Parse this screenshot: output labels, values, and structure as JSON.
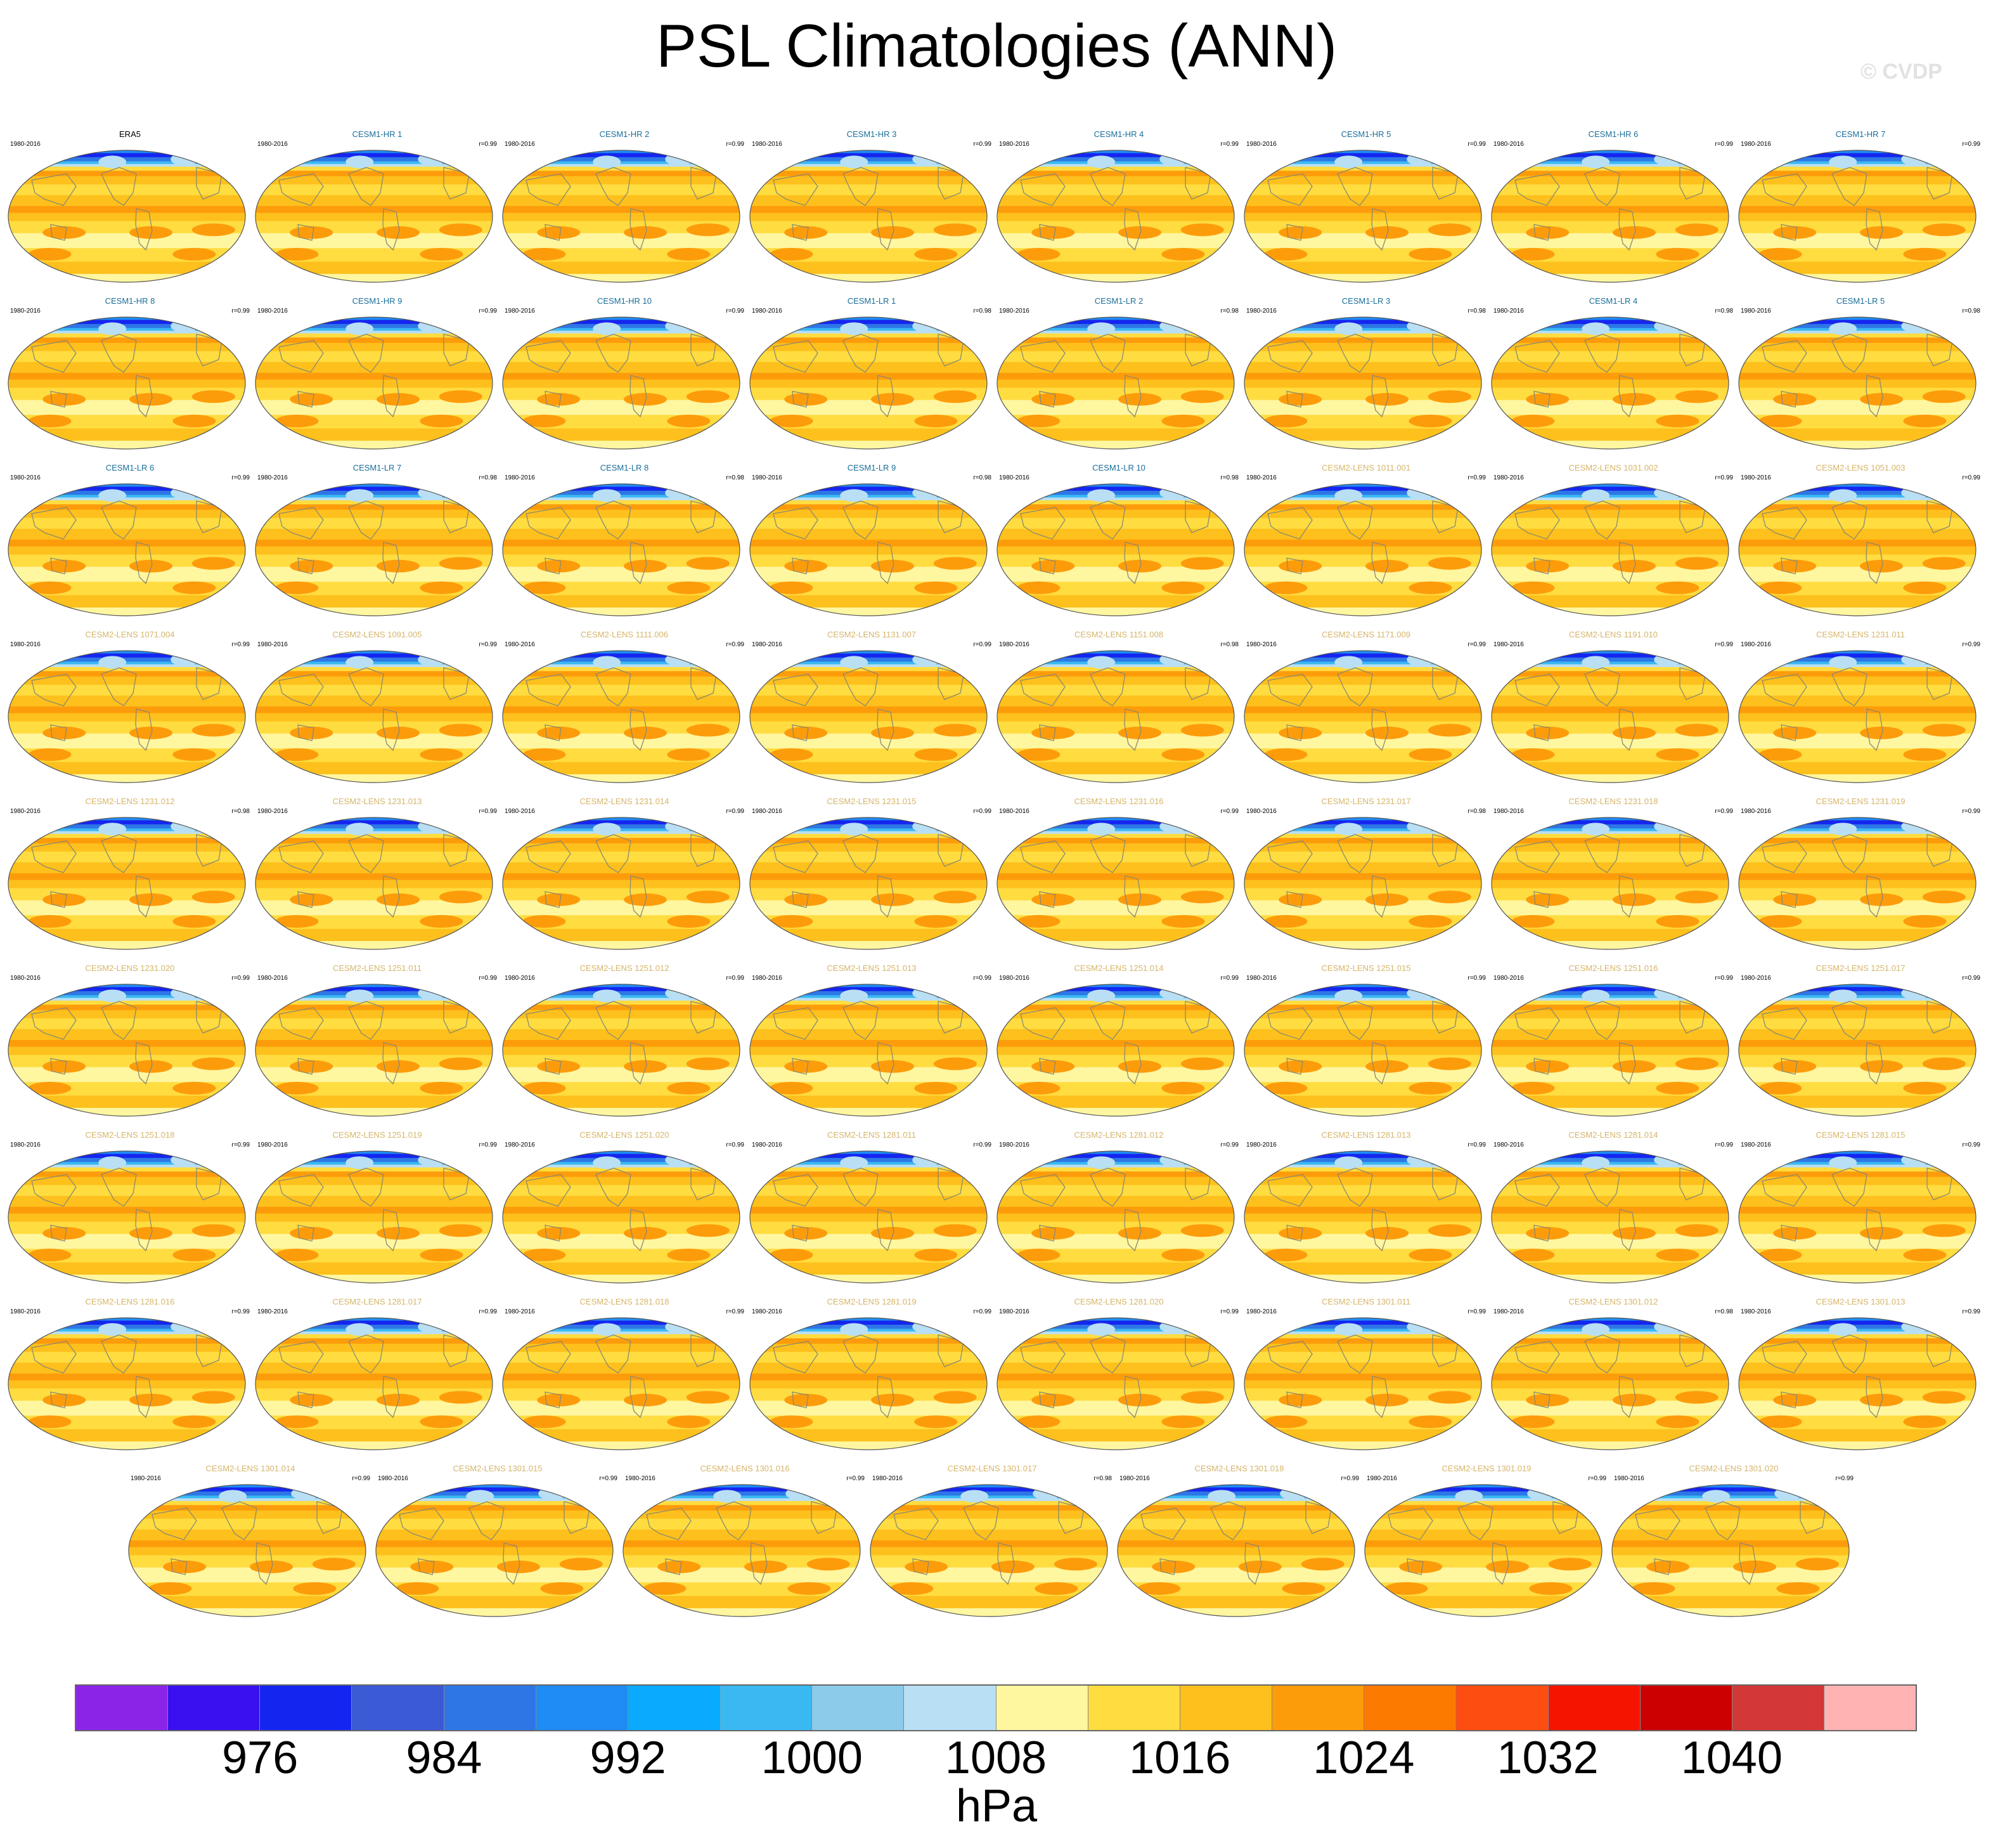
{
  "title": "PSL Climatologies (ANN)",
  "watermark": "© CVDP",
  "colors": {
    "era5_label": "#000000",
    "cesm1_label": "#1a6e9a",
    "cesm2_label": "#d6b56a"
  },
  "chart_data": {
    "type": "heatmap",
    "title": "PSL Climatologies (ANN)",
    "colorbar": {
      "units": "hPa",
      "tick_labels": [
        "976",
        "984",
        "992",
        "1000",
        "1008",
        "1016",
        "1024",
        "1032",
        "1040"
      ],
      "colors": [
        "#8c24e8",
        "#3a10f0",
        "#1525f0",
        "#3a5ad6",
        "#2e76e6",
        "#1f8cf5",
        "#0aaaff",
        "#3ab8f2",
        "#8ccbea",
        "#b9dff4",
        "#fff6a0",
        "#ffdc40",
        "#fdc01c",
        "#fd9c0a",
        "#fd7a00",
        "#fd4d10",
        "#f51400",
        "#cc0000",
        "#d43737",
        "#ffb3b3"
      ]
    },
    "panels": [
      {
        "name": "ERA5",
        "years": "1980-2016",
        "r": "",
        "group": "era5"
      },
      {
        "name": "CESM1-HR 1",
        "years": "1980-2016",
        "r": "r=0.99",
        "group": "cesm1"
      },
      {
        "name": "CESM1-HR 2",
        "years": "1980-2016",
        "r": "r=0.99",
        "group": "cesm1"
      },
      {
        "name": "CESM1-HR 3",
        "years": "1980-2016",
        "r": "r=0.99",
        "group": "cesm1"
      },
      {
        "name": "CESM1-HR 4",
        "years": "1980-2016",
        "r": "r=0.99",
        "group": "cesm1"
      },
      {
        "name": "CESM1-HR 5",
        "years": "1980-2016",
        "r": "r=0.99",
        "group": "cesm1"
      },
      {
        "name": "CESM1-HR 6",
        "years": "1980-2016",
        "r": "r=0.99",
        "group": "cesm1"
      },
      {
        "name": "CESM1-HR 7",
        "years": "1980-2016",
        "r": "r=0.99",
        "group": "cesm1"
      },
      {
        "name": "CESM1-HR 8",
        "years": "1980-2016",
        "r": "r=0.99",
        "group": "cesm1"
      },
      {
        "name": "CESM1-HR 9",
        "years": "1980-2016",
        "r": "r=0.99",
        "group": "cesm1"
      },
      {
        "name": "CESM1-HR 10",
        "years": "1980-2016",
        "r": "r=0.99",
        "group": "cesm1"
      },
      {
        "name": "CESM1-LR 1",
        "years": "1980-2016",
        "r": "r=0.98",
        "group": "cesm1"
      },
      {
        "name": "CESM1-LR 2",
        "years": "1980-2016",
        "r": "r=0.98",
        "group": "cesm1"
      },
      {
        "name": "CESM1-LR 3",
        "years": "1980-2016",
        "r": "r=0.98",
        "group": "cesm1"
      },
      {
        "name": "CESM1-LR 4",
        "years": "1980-2016",
        "r": "r=0.98",
        "group": "cesm1"
      },
      {
        "name": "CESM1-LR 5",
        "years": "1980-2016",
        "r": "r=0.98",
        "group": "cesm1"
      },
      {
        "name": "CESM1-LR 6",
        "years": "1980-2016",
        "r": "r=0.99",
        "group": "cesm1"
      },
      {
        "name": "CESM1-LR 7",
        "years": "1980-2016",
        "r": "r=0.98",
        "group": "cesm1"
      },
      {
        "name": "CESM1-LR 8",
        "years": "1980-2016",
        "r": "r=0.98",
        "group": "cesm1"
      },
      {
        "name": "CESM1-LR 9",
        "years": "1980-2016",
        "r": "r=0.98",
        "group": "cesm1"
      },
      {
        "name": "CESM1-LR 10",
        "years": "1980-2016",
        "r": "r=0.98",
        "group": "cesm1"
      },
      {
        "name": "CESM2-LENS 1011.001",
        "years": "1980-2016",
        "r": "r=0.99",
        "group": "cesm2"
      },
      {
        "name": "CESM2-LENS 1031.002",
        "years": "1980-2016",
        "r": "r=0.99",
        "group": "cesm2"
      },
      {
        "name": "CESM2-LENS 1051.003",
        "years": "1980-2016",
        "r": "r=0.99",
        "group": "cesm2"
      },
      {
        "name": "CESM2-LENS 1071.004",
        "years": "1980-2016",
        "r": "r=0.99",
        "group": "cesm2"
      },
      {
        "name": "CESM2-LENS 1091.005",
        "years": "1980-2016",
        "r": "r=0.99",
        "group": "cesm2"
      },
      {
        "name": "CESM2-LENS 1111.006",
        "years": "1980-2016",
        "r": "r=0.99",
        "group": "cesm2"
      },
      {
        "name": "CESM2-LENS 1131.007",
        "years": "1980-2016",
        "r": "r=0.99",
        "group": "cesm2"
      },
      {
        "name": "CESM2-LENS 1151.008",
        "years": "1980-2016",
        "r": "r=0.98",
        "group": "cesm2"
      },
      {
        "name": "CESM2-LENS 1171.009",
        "years": "1980-2016",
        "r": "r=0.99",
        "group": "cesm2"
      },
      {
        "name": "CESM2-LENS 1191.010",
        "years": "1980-2016",
        "r": "r=0.99",
        "group": "cesm2"
      },
      {
        "name": "CESM2-LENS 1231.011",
        "years": "1980-2016",
        "r": "r=0.99",
        "group": "cesm2"
      },
      {
        "name": "CESM2-LENS 1231.012",
        "years": "1980-2016",
        "r": "r=0.98",
        "group": "cesm2"
      },
      {
        "name": "CESM2-LENS 1231.013",
        "years": "1980-2016",
        "r": "r=0.99",
        "group": "cesm2"
      },
      {
        "name": "CESM2-LENS 1231.014",
        "years": "1980-2016",
        "r": "r=0.99",
        "group": "cesm2"
      },
      {
        "name": "CESM2-LENS 1231.015",
        "years": "1980-2016",
        "r": "r=0.99",
        "group": "cesm2"
      },
      {
        "name": "CESM2-LENS 1231.016",
        "years": "1980-2016",
        "r": "r=0.99",
        "group": "cesm2"
      },
      {
        "name": "CESM2-LENS 1231.017",
        "years": "1980-2016",
        "r": "r=0.98",
        "group": "cesm2"
      },
      {
        "name": "CESM2-LENS 1231.018",
        "years": "1980-2016",
        "r": "r=0.99",
        "group": "cesm2"
      },
      {
        "name": "CESM2-LENS 1231.019",
        "years": "1980-2016",
        "r": "r=0.99",
        "group": "cesm2"
      },
      {
        "name": "CESM2-LENS 1231.020",
        "years": "1980-2016",
        "r": "r=0.99",
        "group": "cesm2"
      },
      {
        "name": "CESM2-LENS 1251.011",
        "years": "1980-2016",
        "r": "r=0.99",
        "group": "cesm2"
      },
      {
        "name": "CESM2-LENS 1251.012",
        "years": "1980-2016",
        "r": "r=0.99",
        "group": "cesm2"
      },
      {
        "name": "CESM2-LENS 1251.013",
        "years": "1980-2016",
        "r": "r=0.99",
        "group": "cesm2"
      },
      {
        "name": "CESM2-LENS 1251.014",
        "years": "1980-2016",
        "r": "r=0.99",
        "group": "cesm2"
      },
      {
        "name": "CESM2-LENS 1251.015",
        "years": "1980-2016",
        "r": "r=0.99",
        "group": "cesm2"
      },
      {
        "name": "CESM2-LENS 1251.016",
        "years": "1980-2016",
        "r": "r=0.99",
        "group": "cesm2"
      },
      {
        "name": "CESM2-LENS 1251.017",
        "years": "1980-2016",
        "r": "r=0.99",
        "group": "cesm2"
      },
      {
        "name": "CESM2-LENS 1251.018",
        "years": "1980-2016",
        "r": "r=0.99",
        "group": "cesm2"
      },
      {
        "name": "CESM2-LENS 1251.019",
        "years": "1980-2016",
        "r": "r=0.99",
        "group": "cesm2"
      },
      {
        "name": "CESM2-LENS 1251.020",
        "years": "1980-2016",
        "r": "r=0.99",
        "group": "cesm2"
      },
      {
        "name": "CESM2-LENS 1281.011",
        "years": "1980-2016",
        "r": "r=0.99",
        "group": "cesm2"
      },
      {
        "name": "CESM2-LENS 1281.012",
        "years": "1980-2016",
        "r": "r=0.99",
        "group": "cesm2"
      },
      {
        "name": "CESM2-LENS 1281.013",
        "years": "1980-2016",
        "r": "r=0.99",
        "group": "cesm2"
      },
      {
        "name": "CESM2-LENS 1281.014",
        "years": "1980-2016",
        "r": "r=0.99",
        "group": "cesm2"
      },
      {
        "name": "CESM2-LENS 1281.015",
        "years": "1980-2016",
        "r": "r=0.99",
        "group": "cesm2"
      },
      {
        "name": "CESM2-LENS 1281.016",
        "years": "1980-2016",
        "r": "r=0.99",
        "group": "cesm2"
      },
      {
        "name": "CESM2-LENS 1281.017",
        "years": "1980-2016",
        "r": "r=0.99",
        "group": "cesm2"
      },
      {
        "name": "CESM2-LENS 1281.018",
        "years": "1980-2016",
        "r": "r=0.99",
        "group": "cesm2"
      },
      {
        "name": "CESM2-LENS 1281.019",
        "years": "1980-2016",
        "r": "r=0.99",
        "group": "cesm2"
      },
      {
        "name": "CESM2-LENS 1281.020",
        "years": "1980-2016",
        "r": "r=0.99",
        "group": "cesm2"
      },
      {
        "name": "CESM2-LENS 1301.011",
        "years": "1980-2016",
        "r": "r=0.99",
        "group": "cesm2"
      },
      {
        "name": "CESM2-LENS 1301.012",
        "years": "1980-2016",
        "r": "r=0.98",
        "group": "cesm2"
      },
      {
        "name": "CESM2-LENS 1301.013",
        "years": "1980-2016",
        "r": "r=0.99",
        "group": "cesm2"
      },
      {
        "name": "CESM2-LENS 1301.014",
        "years": "1980-2016",
        "r": "r=0.99",
        "group": "cesm2"
      },
      {
        "name": "CESM2-LENS 1301.015",
        "years": "1980-2016",
        "r": "r=0.99",
        "group": "cesm2"
      },
      {
        "name": "CESM2-LENS 1301.016",
        "years": "1980-2016",
        "r": "r=0.99",
        "group": "cesm2"
      },
      {
        "name": "CESM2-LENS 1301.017",
        "years": "1980-2016",
        "r": "r=0.98",
        "group": "cesm2"
      },
      {
        "name": "CESM2-LENS 1301.018",
        "years": "1980-2016",
        "r": "r=0.99",
        "group": "cesm2"
      },
      {
        "name": "CESM2-LENS 1301.019",
        "years": "1980-2016",
        "r": "r=0.99",
        "group": "cesm2"
      },
      {
        "name": "CESM2-LENS 1301.020",
        "years": "1980-2016",
        "r": "r=0.99",
        "group": "cesm2"
      }
    ]
  }
}
